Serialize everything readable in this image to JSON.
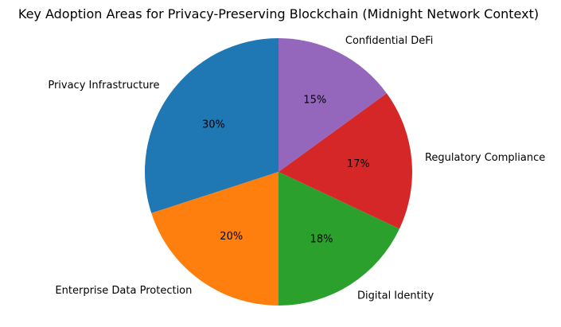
{
  "chart_data": {
    "type": "pie",
    "title": "Key Adoption Areas for Privacy-Preserving Blockchain (Midnight Network Context)",
    "start_angle_deg": 90,
    "direction": "counterclockwise",
    "slices": [
      {
        "label": "Privacy Infrastructure",
        "value": 30,
        "pct_label": "30%",
        "color": "#1f77b4"
      },
      {
        "label": "Enterprise Data Protection",
        "value": 20,
        "pct_label": "20%",
        "color": "#ff7f0e"
      },
      {
        "label": "Digital Identity",
        "value": 18,
        "pct_label": "18%",
        "color": "#2ca02c"
      },
      {
        "label": "Regulatory Compliance",
        "value": 17,
        "pct_label": "17%",
        "color": "#d62728"
      },
      {
        "label": "Confidential DeFi",
        "value": 15,
        "pct_label": "15%",
        "color": "#9467bd"
      }
    ]
  }
}
